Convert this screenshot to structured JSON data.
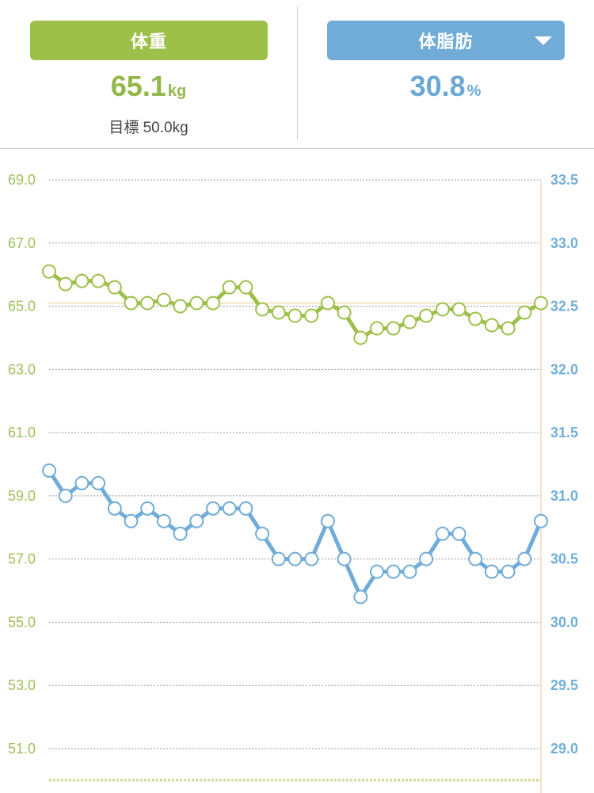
{
  "header": {
    "weight_tab": {
      "label": "体重"
    },
    "fat_tab": {
      "label": "体脂肪"
    },
    "weight": {
      "value": "65.1",
      "unit": "kg"
    },
    "fat": {
      "value": "30.8",
      "unit": "%"
    },
    "goal_label": "目標 50.0kg"
  },
  "colors": {
    "weight": "#9dc04a",
    "fat": "#71acd8"
  },
  "chart_data": {
    "type": "line",
    "left_axis": {
      "ticks": [
        "69.0",
        "67.0",
        "65.0",
        "63.0",
        "61.0",
        "59.0",
        "57.0",
        "55.0",
        "53.0",
        "51.0"
      ],
      "ylim": [
        49.0,
        69.0
      ]
    },
    "right_axis": {
      "ticks": [
        "33.5",
        "33.0",
        "32.5",
        "32.0",
        "31.5",
        "31.0",
        "30.5",
        "30.0",
        "29.5",
        "29.0"
      ],
      "ylim": [
        28.5,
        33.5
      ]
    },
    "goal_value": 50.0,
    "reference_line": 65.1,
    "series": [
      {
        "axis": "left",
        "color": "#9dc04a",
        "values": [
          66.1,
          65.7,
          65.8,
          65.8,
          65.6,
          65.1,
          65.1,
          65.2,
          65.0,
          65.1,
          65.1,
          65.6,
          65.6,
          64.9,
          64.8,
          64.7,
          64.7,
          65.1,
          64.8,
          64.0,
          64.3,
          64.3,
          64.5,
          64.7,
          64.9,
          64.9,
          64.6,
          64.4,
          64.3,
          64.8,
          65.1
        ]
      },
      {
        "axis": "right",
        "color": "#71acd8",
        "values": [
          31.2,
          31.0,
          31.1,
          31.1,
          30.9,
          30.8,
          30.9,
          30.8,
          30.7,
          30.8,
          30.9,
          30.9,
          30.9,
          30.7,
          30.5,
          30.5,
          30.5,
          30.8,
          30.5,
          30.2,
          30.4,
          30.4,
          30.4,
          30.5,
          30.7,
          30.7,
          30.5,
          30.4,
          30.4,
          30.5,
          30.8
        ]
      }
    ]
  }
}
